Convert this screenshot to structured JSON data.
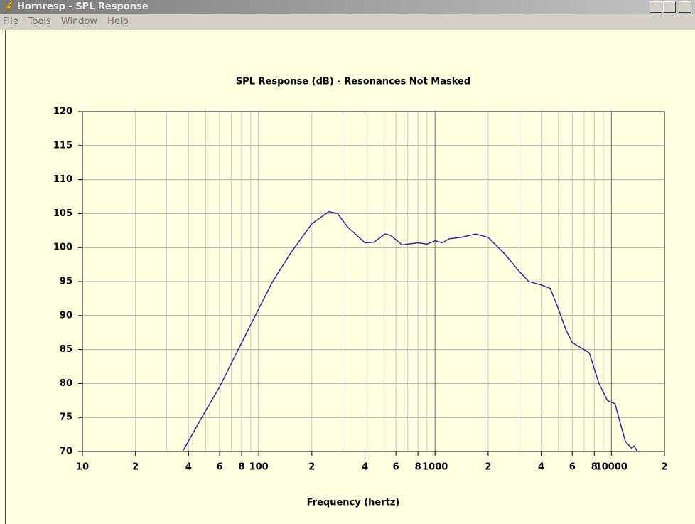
{
  "window": {
    "title": "Hornresp - SPL Response"
  },
  "menu": [
    "File",
    "Tools",
    "Window",
    "Help"
  ],
  "chart_data": {
    "type": "line",
    "title": "SPL Response (dB) - Resonances Not Masked",
    "x_label": "Frequency (hertz)",
    "xscale": "log",
    "grid": true,
    "xlim": [
      10,
      20000
    ],
    "ylim": [
      70,
      120
    ],
    "xticks": [
      10,
      {
        "value": 20,
        "label": "2"
      },
      {
        "value": 40,
        "label": "4"
      },
      {
        "value": 60,
        "label": "6"
      },
      {
        "value": 80,
        "label": "8"
      },
      100,
      {
        "value": 200,
        "label": "2"
      },
      {
        "value": 400,
        "label": "4"
      },
      {
        "value": 600,
        "label": "6"
      },
      {
        "value": 800,
        "label": "8"
      },
      1000,
      {
        "value": 2000,
        "label": "2"
      },
      {
        "value": 4000,
        "label": "4"
      },
      {
        "value": 6000,
        "label": "6"
      },
      {
        "value": 8000,
        "label": "8"
      },
      10000,
      {
        "value": 20000,
        "label": "2"
      }
    ],
    "minor_xticks": [
      30,
      50,
      70,
      90,
      300,
      500,
      700,
      900,
      3000,
      5000,
      7000,
      9000
    ],
    "yticks": [
      70,
      75,
      80,
      85,
      90,
      95,
      100,
      105,
      110,
      115,
      120
    ],
    "series": [
      {
        "color": "#2b2b9c",
        "x": [
          37,
          50,
          60,
          70,
          80,
          100,
          120,
          150,
          200,
          250,
          280,
          320,
          400,
          450,
          520,
          560,
          650,
          700,
          800,
          900,
          1000,
          1100,
          1200,
          1400,
          1700,
          2000,
          2500,
          3000,
          3400,
          4000,
          4500,
          5000,
          5500,
          6000,
          7000,
          7500,
          8500,
          9500,
          10500,
          11000,
          12000,
          13000,
          13500,
          14000
        ],
        "values": [
          70,
          76,
          79.5,
          83,
          86,
          91,
          95,
          99,
          103.5,
          105.3,
          105,
          103,
          100.7,
          100.8,
          102,
          101.8,
          100.4,
          100.5,
          100.7,
          100.5,
          101,
          100.7,
          101.3,
          101.5,
          102,
          101.5,
          99,
          96.5,
          95,
          94.5,
          94,
          91,
          88,
          86,
          85,
          84.5,
          80,
          77.5,
          77,
          75,
          71.5,
          70.5,
          70.8,
          70
        ]
      }
    ]
  }
}
